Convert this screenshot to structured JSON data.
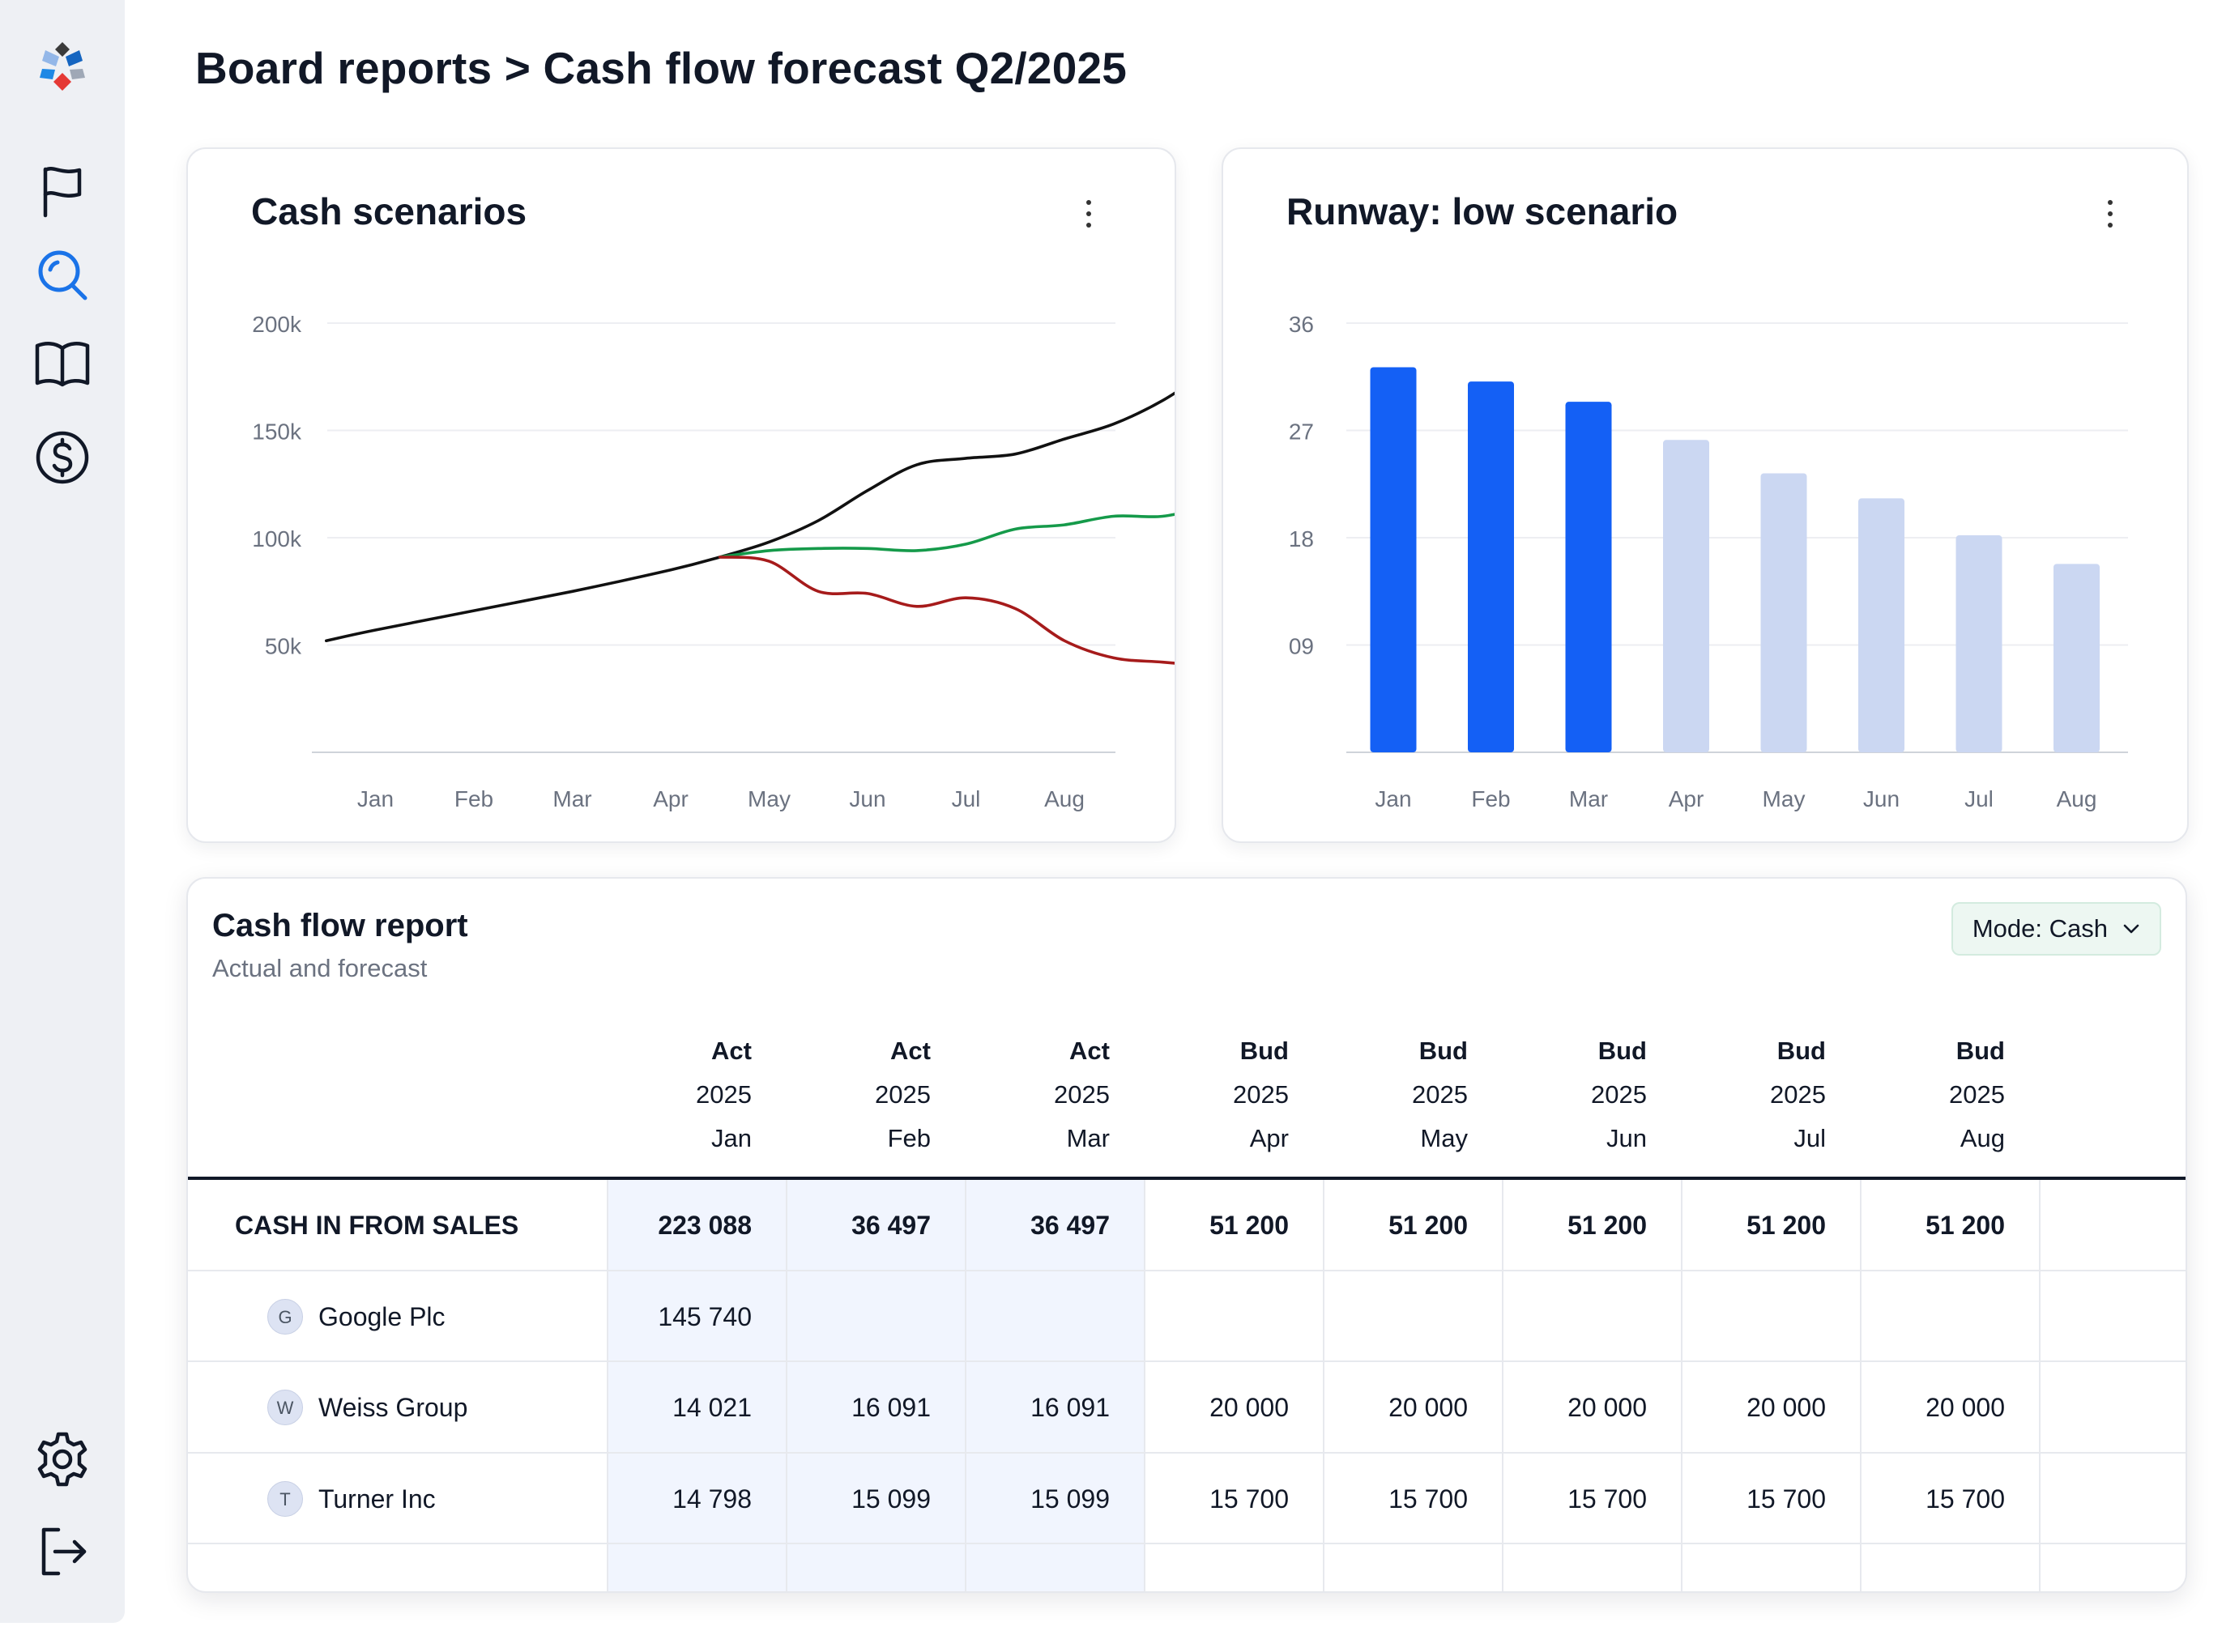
{
  "page": {
    "title": "Board reports > Cash flow forecast Q2/2025"
  },
  "sidebar": {
    "logo": "app-logo",
    "items": [
      {
        "name": "flag",
        "icon": "flag-icon"
      },
      {
        "name": "search",
        "icon": "search-icon",
        "active": true
      },
      {
        "name": "book",
        "icon": "book-icon"
      },
      {
        "name": "dollar",
        "icon": "dollar-icon"
      }
    ],
    "bottom": [
      {
        "name": "settings",
        "icon": "gear-icon"
      },
      {
        "name": "logout",
        "icon": "logout-icon"
      }
    ],
    "active_color": "#1a73e8"
  },
  "charts": {
    "cash_scenarios": {
      "title": "Cash scenarios"
    },
    "runway": {
      "title": "Runway: low scenario"
    }
  },
  "chart_data": [
    {
      "type": "line",
      "title": "Cash scenarios",
      "categories": [
        "Jan",
        "Feb",
        "Mar",
        "Apr",
        "May",
        "Jun",
        "Jul",
        "Aug"
      ],
      "yticks": [
        "200k",
        "150k",
        "100k",
        "50k"
      ],
      "ylim": [
        0,
        200000
      ],
      "grid": true,
      "series": [
        {
          "color": "#111111",
          "points": [
            [
              0.5,
              52000
            ],
            [
              1,
              57000
            ],
            [
              2,
              66000
            ],
            [
              3,
              75000
            ],
            [
              4,
              85000
            ],
            [
              4.5,
              91000
            ],
            [
              5,
              98000
            ],
            [
              5.5,
              108000
            ],
            [
              6,
              122000
            ],
            [
              6.5,
              134000
            ],
            [
              7,
              137000
            ],
            [
              7.5,
              139000
            ],
            [
              8,
              146000
            ],
            [
              8.5,
              153000
            ],
            [
              9,
              164000
            ],
            [
              9.5,
              179000
            ]
          ]
        },
        {
          "color": "#159a4a",
          "points": [
            [
              4.5,
              91000
            ],
            [
              5,
              94000
            ],
            [
              5.5,
              95000
            ],
            [
              6,
              95000
            ],
            [
              6.5,
              94000
            ],
            [
              7,
              97000
            ],
            [
              7.5,
              104000
            ],
            [
              8,
              106000
            ],
            [
              8.5,
              110000
            ],
            [
              9,
              110000
            ],
            [
              9.5,
              115000
            ]
          ]
        },
        {
          "color": "#a61b1b",
          "points": [
            [
              4.5,
              91000
            ],
            [
              5,
              89000
            ],
            [
              5.5,
              75000
            ],
            [
              6,
              74000
            ],
            [
              6.5,
              68000
            ],
            [
              7,
              72000
            ],
            [
              7.5,
              67000
            ],
            [
              8,
              52000
            ],
            [
              8.5,
              44000
            ],
            [
              9,
              42000
            ],
            [
              9.5,
              40000
            ]
          ]
        }
      ]
    },
    {
      "type": "bar",
      "title": "Runway: low scenario",
      "categories": [
        "Jan",
        "Feb",
        "Mar",
        "Apr",
        "May",
        "Jun",
        "Jul",
        "Aug"
      ],
      "values": [
        32.3,
        31.1,
        29.4,
        26.2,
        23.4,
        21.3,
        18.2,
        15.8
      ],
      "highlight": [
        true,
        true,
        true,
        false,
        false,
        false,
        false,
        false
      ],
      "yticks": [
        "36",
        "27",
        "18",
        "09"
      ],
      "ylim": [
        0,
        36
      ],
      "grid": true,
      "colors": {
        "actual": "#1460f5",
        "forecast": "#cbd7f2"
      }
    }
  ],
  "report": {
    "title": "Cash flow report",
    "subtitle": "Actual and forecast",
    "mode_label": "Mode: Cash",
    "columns": [
      {
        "kind": "Act",
        "year": "2025",
        "month": "Jan"
      },
      {
        "kind": "Act",
        "year": "2025",
        "month": "Feb"
      },
      {
        "kind": "Act",
        "year": "2025",
        "month": "Mar"
      },
      {
        "kind": "Bud",
        "year": "2025",
        "month": "Apr"
      },
      {
        "kind": "Bud",
        "year": "2025",
        "month": "May"
      },
      {
        "kind": "Bud",
        "year": "2025",
        "month": "Jun"
      },
      {
        "kind": "Bud",
        "year": "2025",
        "month": "Jul"
      },
      {
        "kind": "Bud",
        "year": "2025",
        "month": "Aug"
      }
    ],
    "rows": [
      {
        "label": "CASH IN FROM SALES",
        "bold": true,
        "values": [
          "223 088",
          "36 497",
          "36 497",
          "51 200",
          "51 200",
          "51 200",
          "51 200",
          "51 200"
        ]
      },
      {
        "label": "Google Plc",
        "avatar": "G",
        "values": [
          "145 740",
          "",
          "",
          "",
          "",
          "",
          "",
          ""
        ]
      },
      {
        "label": "Weiss Group",
        "avatar": "W",
        "values": [
          "14 021",
          "16 091",
          "16 091",
          "20 000",
          "20 000",
          "20 000",
          "20 000",
          "20 000"
        ]
      },
      {
        "label": "Turner Inc",
        "avatar": "T",
        "values": [
          "14 798",
          "15 099",
          "15 099",
          "15 700",
          "15 700",
          "15 700",
          "15 700",
          "15 700"
        ]
      }
    ]
  }
}
